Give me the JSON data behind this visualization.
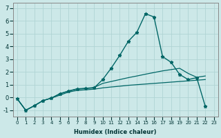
{
  "xlabel": "Humidex (Indice chaleur)",
  "bg_color": "#cce8e8",
  "grid_color": "#b0d4d4",
  "line_color": "#006666",
  "xlim": [
    -0.5,
    23.5
  ],
  "ylim": [
    -1.5,
    7.4
  ],
  "x_ticks": [
    0,
    1,
    2,
    3,
    4,
    5,
    6,
    7,
    8,
    9,
    10,
    11,
    12,
    13,
    14,
    15,
    16,
    17,
    18,
    19,
    20,
    21,
    22,
    23
  ],
  "y_ticks": [
    -1,
    0,
    1,
    2,
    3,
    4,
    5,
    6,
    7
  ],
  "line1_x": [
    0,
    1,
    2,
    3,
    4,
    5,
    6,
    7,
    8,
    9,
    10,
    11,
    12,
    13,
    14,
    15,
    16,
    17,
    18,
    19,
    20,
    21,
    22
  ],
  "line1_y": [
    -0.1,
    -1.0,
    -0.65,
    -0.25,
    -0.05,
    0.3,
    0.5,
    0.65,
    0.7,
    0.75,
    1.4,
    2.3,
    3.3,
    4.4,
    5.1,
    6.55,
    6.3,
    3.2,
    2.75,
    1.8,
    1.4,
    1.55,
    -0.7
  ],
  "line2_x": [
    0,
    1,
    2,
    3,
    4,
    5,
    6,
    7,
    8,
    9,
    10,
    11,
    12,
    13,
    14,
    15,
    16,
    17,
    18,
    19,
    20,
    21,
    22
  ],
  "line2_y": [
    -0.1,
    -1.0,
    -0.65,
    -0.25,
    -0.05,
    0.28,
    0.5,
    0.68,
    0.72,
    0.78,
    1.1,
    1.25,
    1.4,
    1.55,
    1.68,
    1.82,
    1.95,
    2.08,
    2.18,
    2.28,
    1.88,
    1.58,
    1.68
  ],
  "line3_x": [
    0,
    1,
    2,
    3,
    4,
    5,
    6,
    7,
    8,
    9,
    10,
    11,
    12,
    13,
    14,
    15,
    16,
    17,
    18,
    19,
    20,
    21,
    22
  ],
  "line3_y": [
    -0.1,
    -1.0,
    -0.65,
    -0.25,
    -0.05,
    0.18,
    0.42,
    0.55,
    0.6,
    0.65,
    0.75,
    0.82,
    0.88,
    0.95,
    1.0,
    1.05,
    1.1,
    1.15,
    1.2,
    1.25,
    1.3,
    1.35,
    1.4
  ]
}
